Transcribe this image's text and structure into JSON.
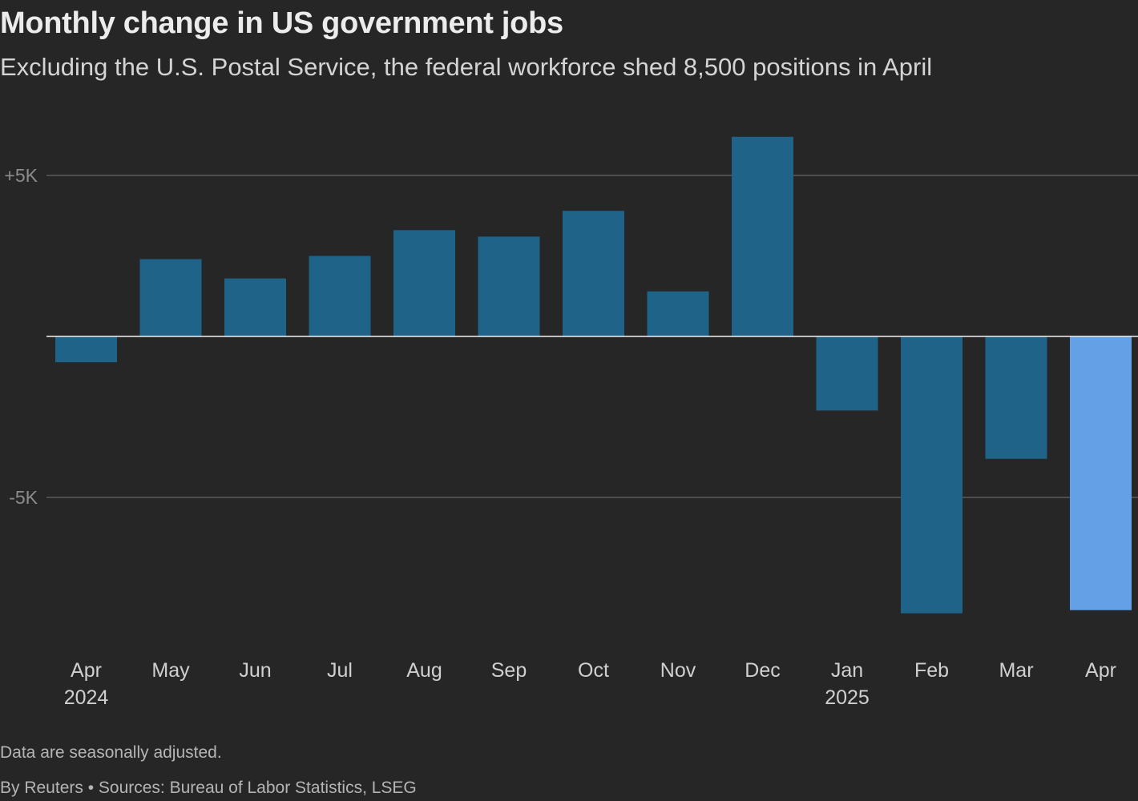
{
  "header": {
    "title": "Monthly change in US government jobs",
    "subtitle": "Excluding the U.S. Postal Service, the federal workforce shed 8,500 positions in April"
  },
  "footer": {
    "note": "Data are seasonally adjusted.",
    "source": "By Reuters • Sources: Bureau of Labor Statistics, LSEG"
  },
  "colors": {
    "background": "#262626",
    "bar": "#1f6388",
    "highlight": "#63a0e6",
    "gridline": "#5c5c5c",
    "zeroline": "#f2f2f2"
  },
  "chart_data": {
    "type": "bar",
    "title": "Monthly change in US government jobs",
    "xlabel": "",
    "ylabel": "",
    "ylim": [
      -10000,
      6500
    ],
    "grid": true,
    "yticks": [
      {
        "value": 5000,
        "label": "+5K"
      },
      {
        "value": -5000,
        "label": "-5K"
      }
    ],
    "categories": [
      "Apr",
      "May",
      "Jun",
      "Jul",
      "Aug",
      "Sep",
      "Oct",
      "Nov",
      "Dec",
      "Jan",
      "Feb",
      "Mar",
      "Apr"
    ],
    "year_labels": [
      "2024",
      "",
      "",
      "",
      "",
      "",
      "",
      "",
      "",
      "2025",
      "",
      "",
      ""
    ],
    "values": [
      -800,
      2400,
      1800,
      2500,
      3300,
      3100,
      3900,
      1400,
      6200,
      -2300,
      -8600,
      -3800,
      -8500
    ],
    "highlight_index": 12
  }
}
